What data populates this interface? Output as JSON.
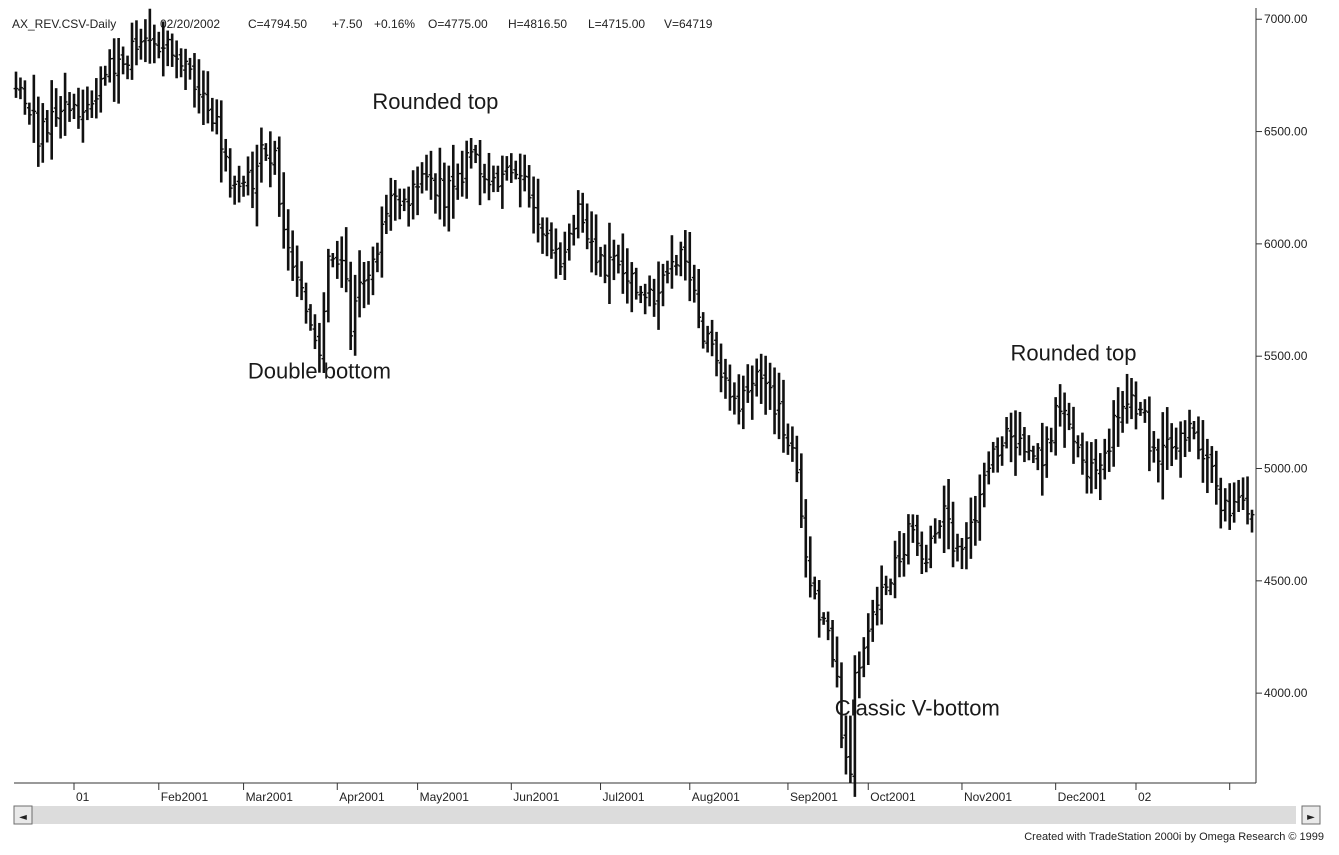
{
  "header": {
    "symbol": "AX_REV.CSV-Daily",
    "date": "02/20/2002",
    "close": "C=4794.50",
    "change": "+7.50",
    "change_pct": "+0.16%",
    "open": "O=4775.00",
    "high": "H=4816.50",
    "low": "L=4715.00",
    "volume": "V=64719"
  },
  "footer": {
    "credit": "Created with TradeStation 2000i by Omega Research © 1999"
  },
  "scrollbar": {
    "left_arrow": "◄",
    "right_arrow": "►"
  },
  "chart_data": {
    "type": "bar",
    "subtype": "OHLC daily price bars",
    "title": "",
    "xlabel": "",
    "ylabel": "",
    "y_axis_side": "right",
    "ylim": [
      3600,
      7050
    ],
    "yticks": [
      {
        "value": 7000,
        "label": "7000.00"
      },
      {
        "value": 6500,
        "label": "6500.00"
      },
      {
        "value": 6000,
        "label": "6000.00"
      },
      {
        "value": 5500,
        "label": "5500.00"
      },
      {
        "value": 5000,
        "label": "5000.00"
      },
      {
        "value": 4500,
        "label": "4500.00"
      },
      {
        "value": 4000,
        "label": "4000.00"
      }
    ],
    "xticks": [
      {
        "index": 13,
        "label": "01"
      },
      {
        "index": 32,
        "label": "Feb2001"
      },
      {
        "index": 51,
        "label": "Mar2001"
      },
      {
        "index": 72,
        "label": "Apr2001"
      },
      {
        "index": 90,
        "label": "May2001"
      },
      {
        "index": 111,
        "label": "Jun2001"
      },
      {
        "index": 131,
        "label": "Jul2001"
      },
      {
        "index": 151,
        "label": "Aug2001"
      },
      {
        "index": 173,
        "label": "Sep2001"
      },
      {
        "index": 191,
        "label": "Oct2001"
      },
      {
        "index": 212,
        "label": "Nov2001"
      },
      {
        "index": 233,
        "label": "Dec2001"
      },
      {
        "index": 251,
        "label": "02"
      },
      {
        "index": 272,
        "label": ""
      }
    ],
    "grid": false,
    "legend": "none",
    "anchors": [
      [
        0,
        6750
      ],
      [
        5,
        6480
      ],
      [
        10,
        6600
      ],
      [
        15,
        6550
      ],
      [
        20,
        6750
      ],
      [
        25,
        6850
      ],
      [
        30,
        6930
      ],
      [
        35,
        6850
      ],
      [
        40,
        6720
      ],
      [
        45,
        6550
      ],
      [
        48,
        6300
      ],
      [
        53,
        6300
      ],
      [
        56,
        6430
      ],
      [
        58,
        6380
      ],
      [
        60,
        6050
      ],
      [
        63,
        5800
      ],
      [
        66,
        5680
      ],
      [
        68,
        5550
      ],
      [
        70,
        5950
      ],
      [
        73,
        5980
      ],
      [
        75,
        5620
      ],
      [
        78,
        5850
      ],
      [
        81,
        6000
      ],
      [
        84,
        6250
      ],
      [
        88,
        6200
      ],
      [
        92,
        6320
      ],
      [
        96,
        6200
      ],
      [
        102,
        6380
      ],
      [
        106,
        6220
      ],
      [
        110,
        6350
      ],
      [
        114,
        6250
      ],
      [
        118,
        6000
      ],
      [
        122,
        5950
      ],
      [
        126,
        6150
      ],
      [
        130,
        5900
      ],
      [
        135,
        5950
      ],
      [
        140,
        5750
      ],
      [
        144,
        5800
      ],
      [
        148,
        5950
      ],
      [
        152,
        5850
      ],
      [
        154,
        5600
      ],
      [
        158,
        5400
      ],
      [
        162,
        5280
      ],
      [
        166,
        5400
      ],
      [
        170,
        5300
      ],
      [
        174,
        5100
      ],
      [
        176,
        4800
      ],
      [
        178,
        4450
      ],
      [
        180,
        4350
      ],
      [
        182,
        4250
      ],
      [
        184,
        4100
      ],
      [
        185,
        3850
      ],
      [
        187,
        3650
      ],
      [
        188,
        4100
      ],
      [
        190,
        4200
      ],
      [
        193,
        4400
      ],
      [
        196,
        4550
      ],
      [
        200,
        4700
      ],
      [
        204,
        4620
      ],
      [
        208,
        4850
      ],
      [
        210,
        4620
      ],
      [
        214,
        4750
      ],
      [
        218,
        5000
      ],
      [
        222,
        5150
      ],
      [
        226,
        5130
      ],
      [
        228,
        5020
      ],
      [
        231,
        5100
      ],
      [
        234,
        5300
      ],
      [
        237,
        5150
      ],
      [
        240,
        5000
      ],
      [
        243,
        5000
      ],
      [
        246,
        5200
      ],
      [
        249,
        5300
      ],
      [
        252,
        5270
      ],
      [
        255,
        5050
      ],
      [
        259,
        5150
      ],
      [
        263,
        5150
      ],
      [
        266,
        5080
      ],
      [
        268,
        4950
      ],
      [
        271,
        4820
      ],
      [
        274,
        4900
      ],
      [
        277,
        4800
      ]
    ],
    "last_bar": {
      "open": 4775.0,
      "high": 4816.5,
      "low": 4715.0,
      "close": 4794.5
    }
  },
  "annotations": [
    {
      "text": "Rounded top",
      "index": 94,
      "value": 6600
    },
    {
      "text": "Double bottom",
      "index": 68,
      "value": 5400
    },
    {
      "text": "Classic V-bottom",
      "index": 202,
      "value": 3900
    },
    {
      "text": "Rounded top",
      "index": 237,
      "value": 5480
    }
  ]
}
